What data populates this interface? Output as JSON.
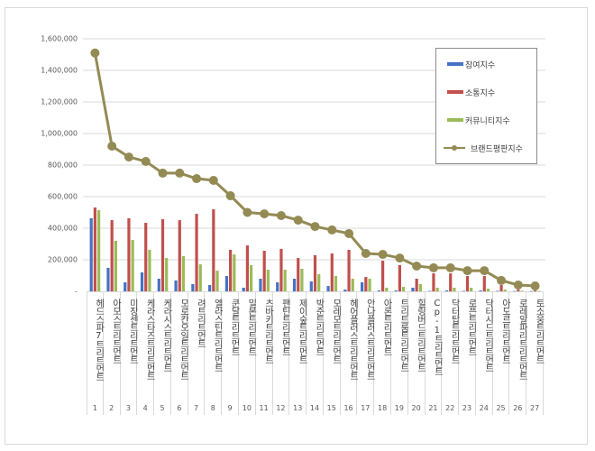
{
  "chart_data": {
    "type": "bar+line",
    "title": "",
    "xlabel": "",
    "ylabel": "",
    "ylim": [
      0,
      1600000
    ],
    "yticks": [
      "-",
      "200,000",
      "400,000",
      "600,000",
      "800,000",
      "1,000,000",
      "1,200,000",
      "1,400,000",
      "1,600,000"
    ],
    "grid": true,
    "legend_position": "upper-right (inside plot)",
    "categories": [
      "헤드스파7트리트먼트",
      "아모스트리트먼트",
      "미장센트리트먼트",
      "케라스타즈트리트먼트",
      "케라시스트리트먼트",
      "모로칸오일트리트먼트",
      "려트리트먼트",
      "엘라스틴트리트먼트",
      "쿤달트리트먼트",
      "밀본트리트먼트",
      "츠바키트리트먼트",
      "팬틴트리트먼트",
      "제이숲트리트먼트",
      "박준트리트먼트",
      "모레모트리트먼트",
      "헤어플러스트리트먼트",
      "안나플러스트리트먼트",
      "아론트리트먼트",
      "트리트룸트리트먼트",
      "힐링버드트리트먼트",
      "Cp-1트리트먼트",
      "닥터탑트리트먼트",
      "로픈트리트먼트",
      "닥터시드트리트먼트",
      "아도르트리트먼트",
      "로레알파리트리트먼트",
      "토소웅트리트먼트"
    ],
    "category_numbers": [
      "1",
      "2",
      "3",
      "4",
      "5",
      "6",
      "7",
      "8",
      "9",
      "10",
      "11",
      "12",
      "13",
      "14",
      "15",
      "16",
      "17",
      "18",
      "19",
      "20",
      "21",
      "22",
      "23",
      "24",
      "25",
      "26",
      "27"
    ],
    "series": [
      {
        "name": "참여지수",
        "type": "bar",
        "color": "#4472c4",
        "values": [
          463000,
          149000,
          57000,
          120000,
          80000,
          69000,
          46000,
          40000,
          97000,
          23000,
          80000,
          57000,
          80000,
          63000,
          34000,
          11000,
          57000,
          6000,
          6000,
          23000,
          3000,
          6000,
          3000,
          6000,
          3000,
          2000,
          2000
        ]
      },
      {
        "name": "소통지수",
        "type": "bar",
        "color": "#c0504d",
        "values": [
          531000,
          451000,
          463000,
          434000,
          457000,
          451000,
          491000,
          520000,
          263000,
          291000,
          257000,
          269000,
          211000,
          229000,
          240000,
          263000,
          91000,
          194000,
          166000,
          80000,
          114000,
          114000,
          97000,
          97000,
          40000,
          11000,
          6000
        ]
      },
      {
        "name": "커뮤니티지수",
        "type": "bar",
        "color": "#9bbb59",
        "values": [
          514000,
          320000,
          326000,
          263000,
          211000,
          223000,
          171000,
          131000,
          234000,
          166000,
          137000,
          137000,
          143000,
          109000,
          97000,
          80000,
          80000,
          23000,
          29000,
          46000,
          23000,
          23000,
          23000,
          17000,
          11000,
          4000,
          3000
        ]
      },
      {
        "name": "브랜드평판지수",
        "type": "line",
        "color": "#948a54",
        "values": [
          1510000,
          920000,
          851000,
          823000,
          749000,
          749000,
          714000,
          703000,
          606000,
          500000,
          491000,
          480000,
          451000,
          411000,
          389000,
          366000,
          240000,
          234000,
          211000,
          160000,
          149000,
          149000,
          131000,
          131000,
          69000,
          40000,
          34000
        ]
      }
    ]
  },
  "legend": {
    "items": [
      {
        "label": "참여지수",
        "color": "#4472c4",
        "kind": "bar"
      },
      {
        "label": "소통지수",
        "color": "#c0504d",
        "kind": "bar"
      },
      {
        "label": "커뮤니티지수",
        "color": "#9bbb59",
        "kind": "bar"
      },
      {
        "label": "브랜드평판지수",
        "color": "#948a54",
        "kind": "line"
      }
    ]
  },
  "colors": {
    "grid": "#d9d9d9",
    "axis_text": "#595959",
    "frame": "#d9d9d9"
  }
}
